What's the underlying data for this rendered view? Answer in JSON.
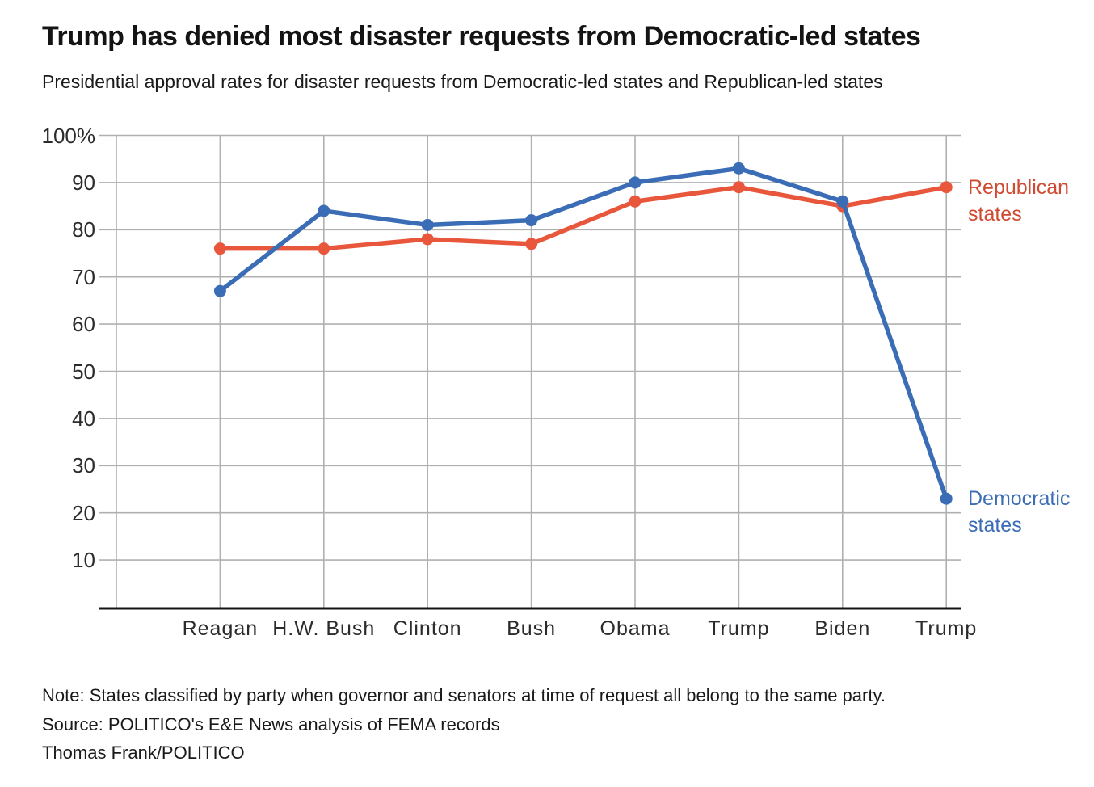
{
  "page": {
    "title": "Trump has denied most disaster requests from Democratic-led states",
    "subtitle": "Presidential approval rates for disaster requests from Democratic-led states and Republican-led states"
  },
  "footer": {
    "note": "Note: States classified by party when governor and senators at time of request all belong to the same party.",
    "source": "Source: POLITICO's E&E News analysis of FEMA records",
    "credit": "Thomas Frank/POLITICO"
  },
  "chart_data": {
    "type": "line",
    "categories": [
      "Reagan",
      "H.W. Bush",
      "Clinton",
      "Bush",
      "Obama",
      "Trump",
      "Biden",
      "Trump"
    ],
    "series": [
      {
        "name": "Republican states",
        "label_lines": [
          "Republican",
          "states"
        ],
        "color": "#e8573c",
        "label_color": "#d04a31",
        "values": [
          76,
          76,
          78,
          77,
          86,
          89,
          85,
          89
        ]
      },
      {
        "name": "Democratic states",
        "label_lines": [
          "Democratic",
          "states"
        ],
        "color": "#3a6db5",
        "label_color": "#3a6db5",
        "values": [
          67,
          84,
          81,
          82,
          90,
          93,
          86,
          23
        ]
      }
    ],
    "yticks": [
      10,
      20,
      30,
      40,
      50,
      60,
      70,
      80,
      90,
      100
    ],
    "ytick_labels": [
      "10",
      "20",
      "30",
      "40",
      "50",
      "60",
      "70",
      "80",
      "90",
      "100%"
    ],
    "ylim": [
      0,
      100
    ],
    "xlabel": "",
    "ylabel": "",
    "grid": true,
    "legend_position": "right-of-line-end",
    "colors": {
      "gridline": "#b0b0b0",
      "axis": "#141414",
      "text": "#2b2b2b"
    }
  }
}
